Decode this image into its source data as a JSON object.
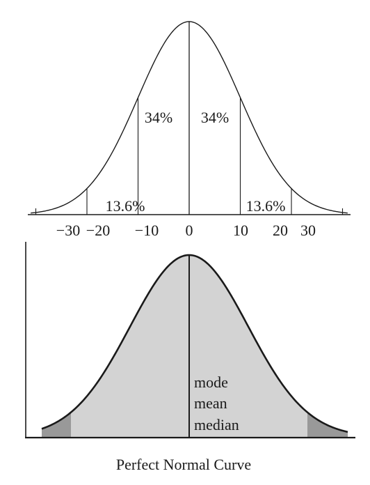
{
  "top_chart": {
    "ticks": [
      {
        "value": -30,
        "label": "−30"
      },
      {
        "value": -20,
        "label": "−20"
      },
      {
        "value": -10,
        "label": "−10"
      },
      {
        "value": 0,
        "label": "0"
      },
      {
        "value": 10,
        "label": "10"
      },
      {
        "value": 20,
        "label": "20"
      },
      {
        "value": 30,
        "label": "30"
      }
    ],
    "divider_values": [
      -20,
      -10,
      0,
      10,
      20
    ],
    "regions": [
      {
        "label": "34%",
        "from": -10,
        "to": 0
      },
      {
        "label": "34%",
        "from": 0,
        "to": 10
      },
      {
        "label": "13.6%",
        "from": -20,
        "to": -10
      },
      {
        "label": "13.6%",
        "from": 10,
        "to": 20
      }
    ]
  },
  "bottom_chart": {
    "center_labels": [
      "mode",
      "mean",
      "median"
    ],
    "tail_cutoff_sd": 2,
    "colors": {
      "body_fill": "#d3d3d3",
      "tail_fill": "#999999",
      "line": "#1a1a1a"
    }
  },
  "caption": "Perfect Normal Curve"
}
